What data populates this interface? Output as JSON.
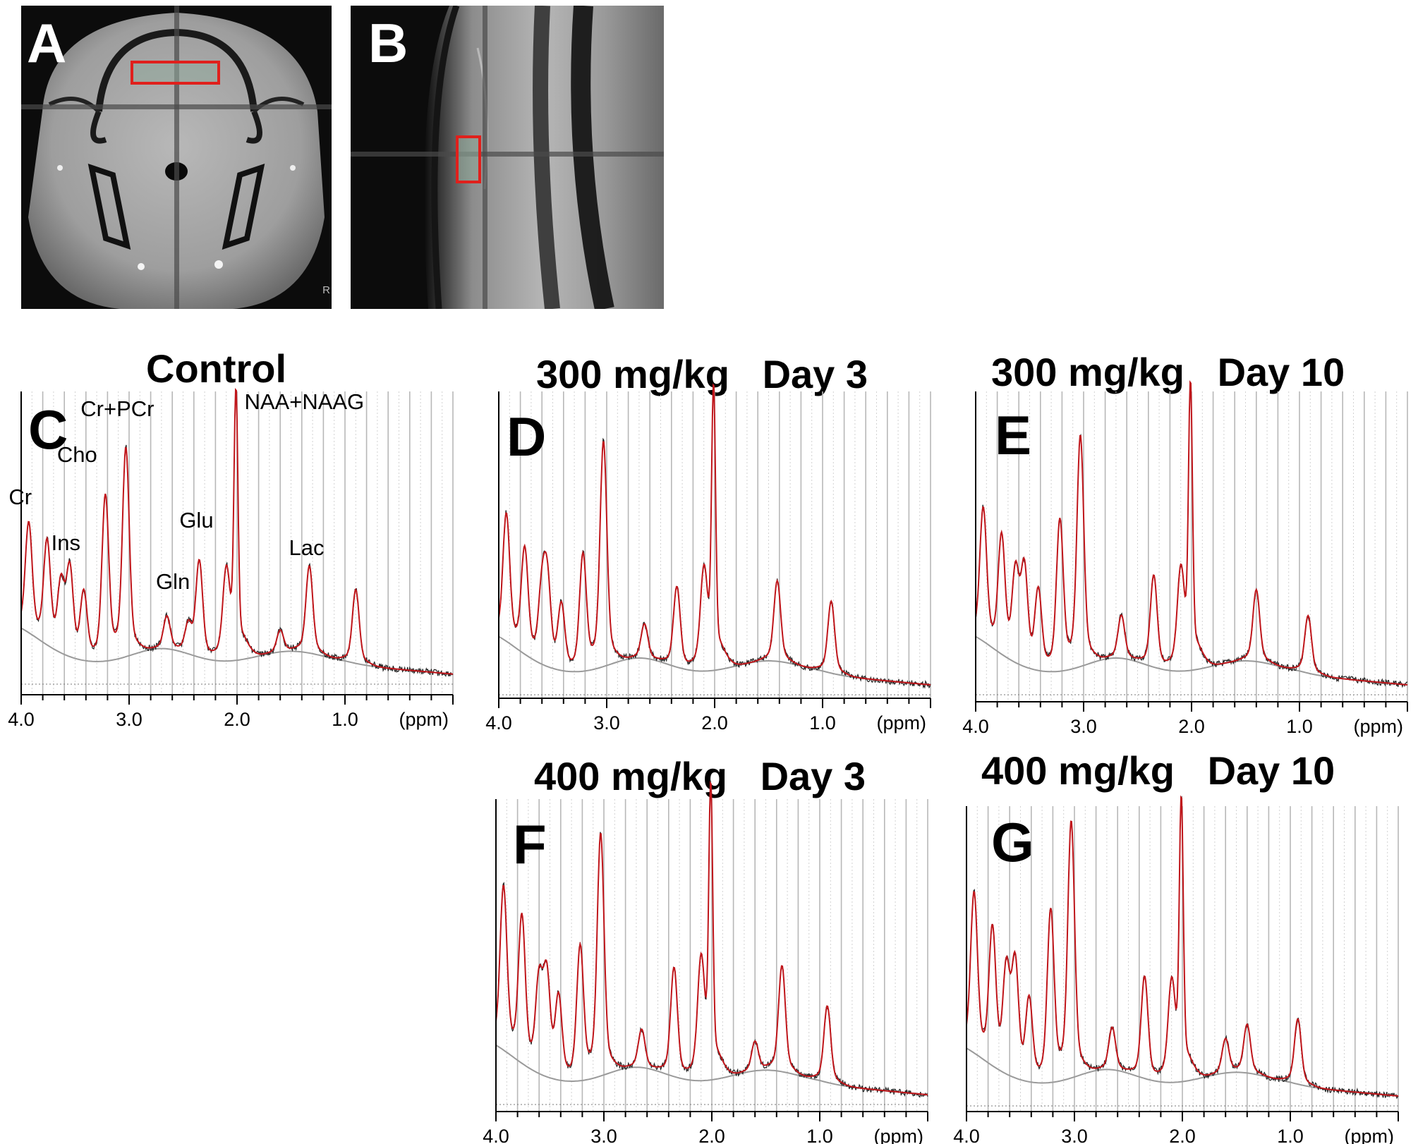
{
  "figure": {
    "panel_labels": {
      "a": "A",
      "b": "B",
      "c": "C",
      "d": "D",
      "e": "E",
      "f": "F",
      "g": "G"
    },
    "mri_corner_mark": "R",
    "titles": {
      "c": "Control",
      "d": "300 mg/kg   Day 3",
      "e": "300 mg/kg   Day 10",
      "f": "400 mg/kg   Day 3",
      "g": "400 mg/kg   Day 10"
    },
    "voxel_outline_color": "#e0201c",
    "fit_color": "#c0161b",
    "raw_color": "#222222",
    "baseline_color": "#9a9a9a"
  },
  "chart_data": [
    {
      "panel": "C",
      "type": "line",
      "title": "Control",
      "xlabel": "(ppm)",
      "xlim": [
        4.0,
        0.0
      ],
      "x_reversed": true,
      "x_ticks": [
        "4.0",
        "3.0",
        "2.0",
        "1.0"
      ],
      "peak_labels": [
        {
          "text": "Cr",
          "ppm": 3.93
        },
        {
          "text": "Ins",
          "ppm": 3.56
        },
        {
          "text": "Cho",
          "ppm": 3.22
        },
        {
          "text": "Cr+PCr",
          "ppm": 3.03
        },
        {
          "text": "Gln",
          "ppm": 2.45
        },
        {
          "text": "Glu",
          "ppm": 2.35
        },
        {
          "text": "NAA+NAAG",
          "ppm": 2.01
        },
        {
          "text": "Lac",
          "ppm": 1.33
        }
      ],
      "peaks": [
        {
          "ppm": 3.93,
          "height": 0.4
        },
        {
          "ppm": 3.76,
          "height": 0.37
        },
        {
          "ppm": 3.63,
          "height": 0.24
        },
        {
          "ppm": 3.55,
          "height": 0.31
        },
        {
          "ppm": 3.42,
          "height": 0.24
        },
        {
          "ppm": 3.22,
          "height": 0.6
        },
        {
          "ppm": 3.03,
          "height": 0.76
        },
        {
          "ppm": 2.65,
          "height": 0.12
        },
        {
          "ppm": 2.45,
          "height": 0.1
        },
        {
          "ppm": 2.35,
          "height": 0.35
        },
        {
          "ppm": 2.1,
          "height": 0.28
        },
        {
          "ppm": 2.01,
          "height": 0.98
        },
        {
          "ppm": 1.6,
          "height": 0.08
        },
        {
          "ppm": 1.33,
          "height": 0.32
        },
        {
          "ppm": 0.9,
          "height": 0.27
        }
      ]
    },
    {
      "panel": "D",
      "type": "line",
      "title": "300 mg/kg   Day 3",
      "xlabel": "(ppm)",
      "xlim": [
        4.0,
        0.0
      ],
      "x_reversed": true,
      "x_ticks": [
        "4.0",
        "3.0",
        "2.0",
        "1.0"
      ],
      "peaks": [
        {
          "ppm": 3.93,
          "height": 0.44
        },
        {
          "ppm": 3.76,
          "height": 0.36
        },
        {
          "ppm": 3.6,
          "height": 0.24
        },
        {
          "ppm": 3.55,
          "height": 0.28
        },
        {
          "ppm": 3.42,
          "height": 0.22
        },
        {
          "ppm": 3.22,
          "height": 0.4
        },
        {
          "ppm": 3.03,
          "height": 0.78
        },
        {
          "ppm": 2.65,
          "height": 0.12
        },
        {
          "ppm": 2.35,
          "height": 0.28
        },
        {
          "ppm": 2.1,
          "height": 0.3
        },
        {
          "ppm": 2.01,
          "height": 0.98
        },
        {
          "ppm": 1.42,
          "height": 0.28
        },
        {
          "ppm": 0.92,
          "height": 0.25
        }
      ]
    },
    {
      "panel": "E",
      "type": "line",
      "title": "300 mg/kg   Day 10",
      "xlabel": "(ppm)",
      "xlim": [
        4.0,
        0.0
      ],
      "x_reversed": true,
      "x_ticks": [
        "4.0",
        "3.0",
        "2.0",
        "1.0"
      ],
      "peaks": [
        {
          "ppm": 3.93,
          "height": 0.46
        },
        {
          "ppm": 3.76,
          "height": 0.4
        },
        {
          "ppm": 3.63,
          "height": 0.3
        },
        {
          "ppm": 3.55,
          "height": 0.33
        },
        {
          "ppm": 3.42,
          "height": 0.27
        },
        {
          "ppm": 3.22,
          "height": 0.52
        },
        {
          "ppm": 3.03,
          "height": 0.8
        },
        {
          "ppm": 2.65,
          "height": 0.15
        },
        {
          "ppm": 2.35,
          "height": 0.32
        },
        {
          "ppm": 2.1,
          "height": 0.3
        },
        {
          "ppm": 2.01,
          "height": 0.99
        },
        {
          "ppm": 1.4,
          "height": 0.25
        },
        {
          "ppm": 0.92,
          "height": 0.2
        }
      ]
    },
    {
      "panel": "F",
      "type": "line",
      "title": "400 mg/kg   Day 3",
      "xlabel": "(ppm)",
      "xlim": [
        4.0,
        0.0
      ],
      "x_reversed": true,
      "x_ticks": [
        "4.0",
        "3.0",
        "2.0",
        "1.0"
      ],
      "peaks": [
        {
          "ppm": 3.93,
          "height": 0.55
        },
        {
          "ppm": 3.76,
          "height": 0.49
        },
        {
          "ppm": 3.6,
          "height": 0.3
        },
        {
          "ppm": 3.53,
          "height": 0.33
        },
        {
          "ppm": 3.42,
          "height": 0.27
        },
        {
          "ppm": 3.22,
          "height": 0.45
        },
        {
          "ppm": 3.03,
          "height": 0.82
        },
        {
          "ppm": 2.65,
          "height": 0.13
        },
        {
          "ppm": 2.35,
          "height": 0.37
        },
        {
          "ppm": 2.1,
          "height": 0.36
        },
        {
          "ppm": 2.01,
          "height": 0.99
        },
        {
          "ppm": 1.6,
          "height": 0.1
        },
        {
          "ppm": 1.35,
          "height": 0.36
        },
        {
          "ppm": 0.93,
          "height": 0.26
        }
      ]
    },
    {
      "panel": "G",
      "type": "line",
      "title": "400 mg/kg   Day 10",
      "xlabel": "(ppm)",
      "xlim": [
        4.0,
        0.0
      ],
      "x_reversed": true,
      "x_ticks": [
        "4.0",
        "3.0",
        "2.0",
        "1.0"
      ],
      "peaks": [
        {
          "ppm": 3.93,
          "height": 0.56
        },
        {
          "ppm": 3.76,
          "height": 0.47
        },
        {
          "ppm": 3.63,
          "height": 0.35
        },
        {
          "ppm": 3.55,
          "height": 0.39
        },
        {
          "ppm": 3.42,
          "height": 0.28
        },
        {
          "ppm": 3.22,
          "height": 0.6
        },
        {
          "ppm": 3.03,
          "height": 0.9
        },
        {
          "ppm": 2.65,
          "height": 0.15
        },
        {
          "ppm": 2.35,
          "height": 0.36
        },
        {
          "ppm": 2.1,
          "height": 0.3
        },
        {
          "ppm": 2.01,
          "height": 0.99
        },
        {
          "ppm": 1.6,
          "height": 0.12
        },
        {
          "ppm": 1.4,
          "height": 0.17
        },
        {
          "ppm": 0.93,
          "height": 0.23
        }
      ]
    }
  ]
}
